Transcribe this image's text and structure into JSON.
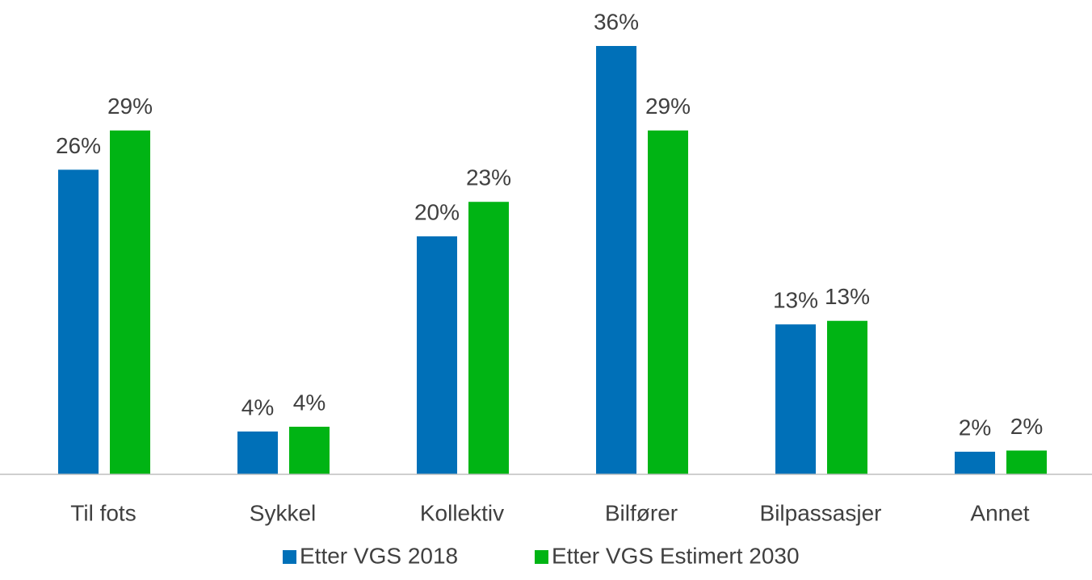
{
  "chart_data": {
    "type": "bar",
    "categories": [
      "Til fots",
      "Sykkel",
      "Kollektiv",
      "Bilfører",
      "Bilpassasjer",
      "Annet"
    ],
    "series": [
      {
        "name": "Etter VGS 2018",
        "color": "#0070b8",
        "values": [
          25.6,
          3.6,
          20.0,
          36.0,
          12.6,
          1.9
        ],
        "value_labels": [
          "26%",
          "4%",
          "20%",
          "36%",
          "13%",
          "2%"
        ]
      },
      {
        "name": "Etter VGS Estimert 2030",
        "color": "#00b414",
        "values": [
          28.9,
          4.0,
          22.9,
          28.9,
          12.9,
          2.0
        ],
        "value_labels": [
          "29%",
          "4%",
          "23%",
          "29%",
          "13%",
          "2%"
        ]
      }
    ]
  }
}
